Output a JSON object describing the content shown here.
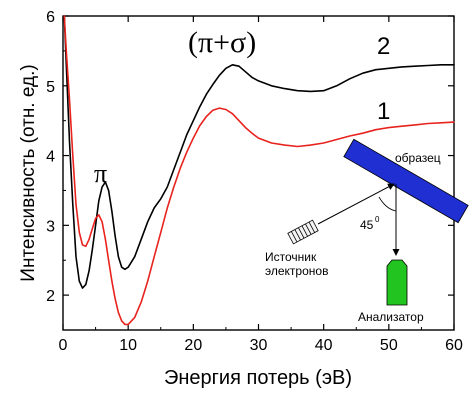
{
  "chart_data": {
    "type": "line",
    "xlabel": "Энергия потерь (эВ)",
    "ylabel": "Интенсивность (отн. ед.)",
    "xlim": [
      0,
      60
    ],
    "ylim": [
      1.5,
      6
    ],
    "xticks": [
      0,
      10,
      20,
      30,
      40,
      50,
      60
    ],
    "yticks": [
      2,
      3,
      4,
      5,
      6
    ],
    "grid": false,
    "series": [
      {
        "name": "2",
        "color": "#000000",
        "points": [
          [
            0.2,
            6.0
          ],
          [
            0.5,
            5.3
          ],
          [
            1.0,
            4.2
          ],
          [
            1.5,
            3.3
          ],
          [
            2.0,
            2.55
          ],
          [
            2.5,
            2.2
          ],
          [
            3.0,
            2.1
          ],
          [
            3.5,
            2.15
          ],
          [
            4.0,
            2.35
          ],
          [
            4.5,
            2.65
          ],
          [
            5.0,
            3.0
          ],
          [
            5.5,
            3.35
          ],
          [
            6.0,
            3.55
          ],
          [
            6.5,
            3.62
          ],
          [
            7.0,
            3.5
          ],
          [
            7.5,
            3.2
          ],
          [
            8.0,
            2.85
          ],
          [
            8.5,
            2.55
          ],
          [
            9.0,
            2.4
          ],
          [
            9.5,
            2.37
          ],
          [
            10.0,
            2.4
          ],
          [
            11.0,
            2.55
          ],
          [
            12.0,
            2.8
          ],
          [
            13.0,
            3.05
          ],
          [
            14.0,
            3.25
          ],
          [
            15.0,
            3.38
          ],
          [
            16.0,
            3.55
          ],
          [
            17.0,
            3.8
          ],
          [
            18.0,
            4.05
          ],
          [
            19.0,
            4.3
          ],
          [
            20.0,
            4.5
          ],
          [
            21.0,
            4.7
          ],
          [
            22.0,
            4.88
          ],
          [
            23.0,
            5.02
          ],
          [
            24.0,
            5.15
          ],
          [
            25.0,
            5.25
          ],
          [
            26.0,
            5.3
          ],
          [
            27.0,
            5.28
          ],
          [
            28.0,
            5.2
          ],
          [
            29.0,
            5.12
          ],
          [
            30.0,
            5.07
          ],
          [
            32.0,
            5.0
          ],
          [
            34.0,
            4.96
          ],
          [
            36.0,
            4.93
          ],
          [
            38.0,
            4.92
          ],
          [
            40.0,
            4.93
          ],
          [
            42.0,
            5.0
          ],
          [
            44.0,
            5.1
          ],
          [
            46.0,
            5.18
          ],
          [
            48.0,
            5.23
          ],
          [
            50.0,
            5.25
          ],
          [
            52.0,
            5.27
          ],
          [
            54.0,
            5.28
          ],
          [
            56.0,
            5.29
          ],
          [
            58.0,
            5.3
          ],
          [
            60.0,
            5.3
          ]
        ]
      },
      {
        "name": "1",
        "color": "#e8231e",
        "points": [
          [
            0.2,
            6.0
          ],
          [
            0.5,
            5.5
          ],
          [
            1.0,
            4.8
          ],
          [
            1.5,
            4.0
          ],
          [
            2.0,
            3.3
          ],
          [
            2.5,
            2.9
          ],
          [
            3.0,
            2.72
          ],
          [
            3.5,
            2.7
          ],
          [
            4.0,
            2.8
          ],
          [
            4.5,
            2.95
          ],
          [
            5.0,
            3.1
          ],
          [
            5.5,
            3.15
          ],
          [
            6.0,
            3.05
          ],
          [
            6.5,
            2.8
          ],
          [
            7.0,
            2.5
          ],
          [
            7.5,
            2.2
          ],
          [
            8.0,
            1.95
          ],
          [
            8.5,
            1.75
          ],
          [
            9.0,
            1.63
          ],
          [
            9.5,
            1.58
          ],
          [
            10.0,
            1.58
          ],
          [
            11.0,
            1.68
          ],
          [
            12.0,
            1.9
          ],
          [
            13.0,
            2.2
          ],
          [
            14.0,
            2.55
          ],
          [
            15.0,
            2.9
          ],
          [
            16.0,
            3.25
          ],
          [
            17.0,
            3.55
          ],
          [
            18.0,
            3.82
          ],
          [
            19.0,
            4.05
          ],
          [
            20.0,
            4.25
          ],
          [
            21.0,
            4.43
          ],
          [
            22.0,
            4.56
          ],
          [
            23.0,
            4.65
          ],
          [
            24.0,
            4.68
          ],
          [
            25.0,
            4.66
          ],
          [
            26.0,
            4.6
          ],
          [
            27.0,
            4.5
          ],
          [
            28.0,
            4.4
          ],
          [
            29.0,
            4.32
          ],
          [
            30.0,
            4.25
          ],
          [
            32.0,
            4.18
          ],
          [
            34.0,
            4.15
          ],
          [
            36.0,
            4.13
          ],
          [
            38.0,
            4.15
          ],
          [
            40.0,
            4.18
          ],
          [
            42.0,
            4.23
          ],
          [
            44.0,
            4.28
          ],
          [
            46.0,
            4.32
          ],
          [
            48.0,
            4.37
          ],
          [
            50.0,
            4.4
          ],
          [
            52.0,
            4.42
          ],
          [
            54.0,
            4.44
          ],
          [
            56.0,
            4.46
          ],
          [
            58.0,
            4.47
          ],
          [
            60.0,
            4.48
          ]
        ]
      }
    ],
    "annotations": {
      "pi": "π",
      "pi_sigma": "(π+σ)",
      "label_2": "2",
      "label_1": "1"
    }
  },
  "inset": {
    "sample_label": "образец",
    "source_label_line1": "Источник",
    "source_label_line2": "электронов",
    "analyzer_label": "Анализатор",
    "angle_label": "45",
    "angle_superscript": "0",
    "sample_color": "#1f2fd1",
    "analyzer_color": "#22c41f"
  }
}
